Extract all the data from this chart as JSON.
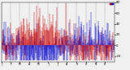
{
  "background_color": "#f0f0f0",
  "bar_color_high": "#cc0000",
  "bar_color_low": "#0000cc",
  "ylim": [
    -30,
    80
  ],
  "xlim": [
    0,
    365
  ],
  "yticks": [
    -20,
    0,
    20,
    40,
    60,
    80
  ],
  "ytick_labels": [
    "-20",
    "0",
    "20",
    "40",
    "60",
    "80"
  ],
  "n_days": 365,
  "seed": 42,
  "month_starts": [
    0,
    31,
    59,
    90,
    120,
    151,
    181,
    212,
    243,
    273,
    304,
    334
  ],
  "month_labels": [
    "J",
    "F",
    "M",
    "A",
    "M",
    "J",
    "J",
    "A",
    "S",
    "O",
    "N",
    "D"
  ]
}
